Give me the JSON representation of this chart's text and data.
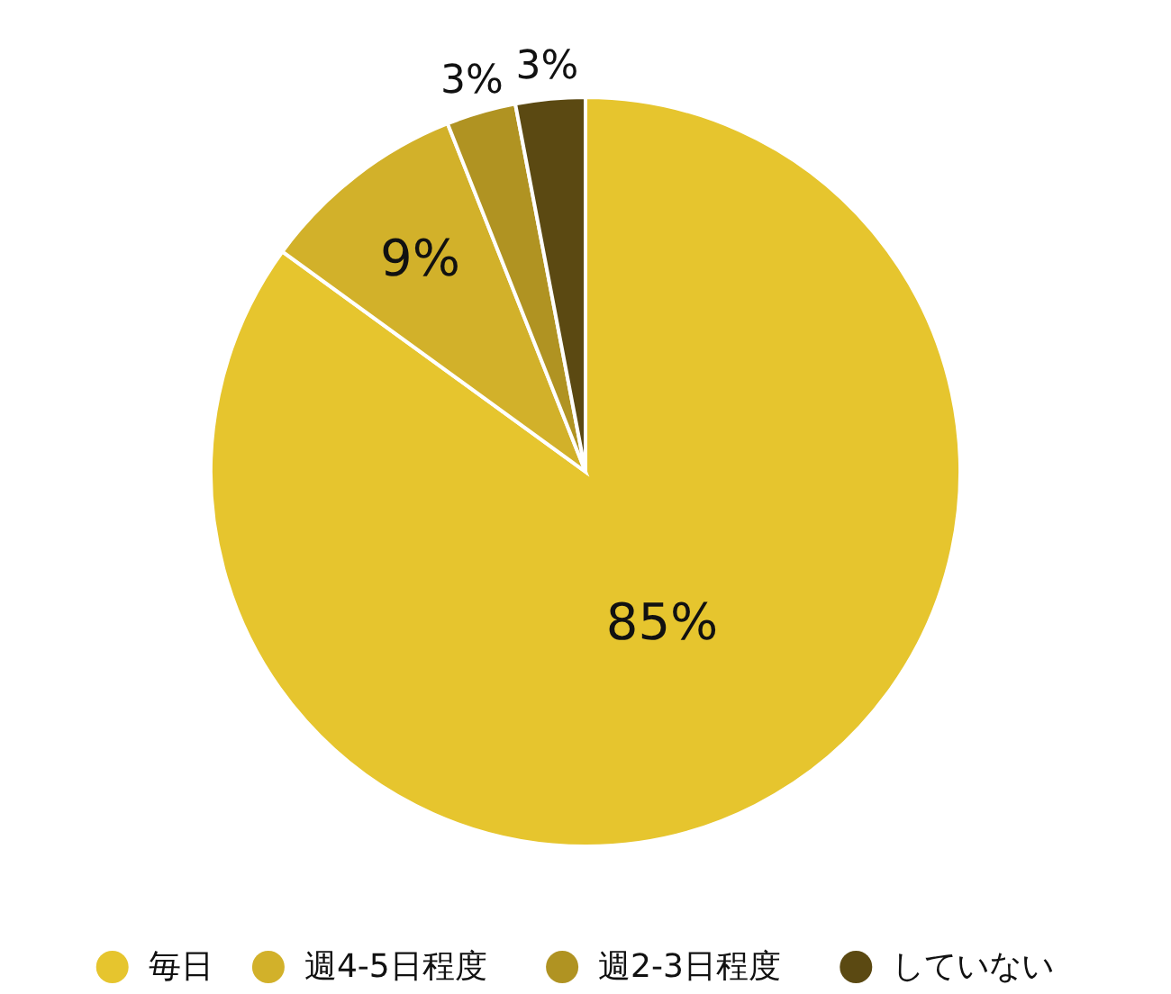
{
  "chart_data": {
    "type": "pie",
    "categories": [
      "毎日",
      "週4-5日程度",
      "週2-3日程度",
      "していない"
    ],
    "values": [
      85,
      9,
      3,
      3
    ],
    "colors": [
      "#e6c52e",
      "#d2b12a",
      "#b09322",
      "#5b4912"
    ],
    "value_labels": [
      "85%",
      "9%",
      "3%",
      "3%"
    ],
    "legend": "bottom"
  }
}
